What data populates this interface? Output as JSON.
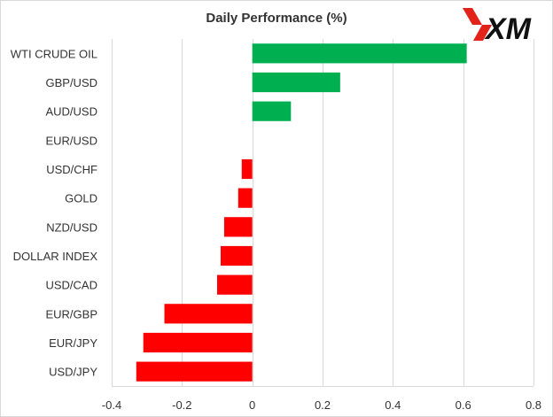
{
  "brand": {
    "name": "XM",
    "accent": "#e2231a"
  },
  "colors": {
    "positive": "#00b050",
    "negative": "#ff0000"
  },
  "chart_data": {
    "type": "bar",
    "orientation": "horizontal",
    "title": "Daily Performance  (%)",
    "xlabel": "",
    "ylabel": "",
    "xlim": [
      -0.4,
      0.8
    ],
    "xticks": [
      -0.4,
      -0.2,
      0,
      0.2,
      0.4,
      0.6,
      0.8
    ],
    "xtick_labels": [
      "-0.4",
      "-0.2",
      "0",
      "0.2",
      "0.4",
      "0.6",
      "0.8"
    ],
    "grid": "vertical",
    "legend": "none",
    "categories": [
      "WTI CRUDE OIL",
      "GBP/USD",
      "AUD/USD",
      "EUR/USD",
      "USD/CHF",
      "GOLD",
      "NZD/USD",
      "DOLLAR INDEX",
      "USD/CAD",
      "EUR/GBP",
      "EUR/JPY",
      "USD/JPY"
    ],
    "values": [
      0.61,
      0.25,
      0.11,
      0.0,
      -0.03,
      -0.04,
      -0.08,
      -0.09,
      -0.1,
      -0.25,
      -0.31,
      -0.33
    ]
  }
}
